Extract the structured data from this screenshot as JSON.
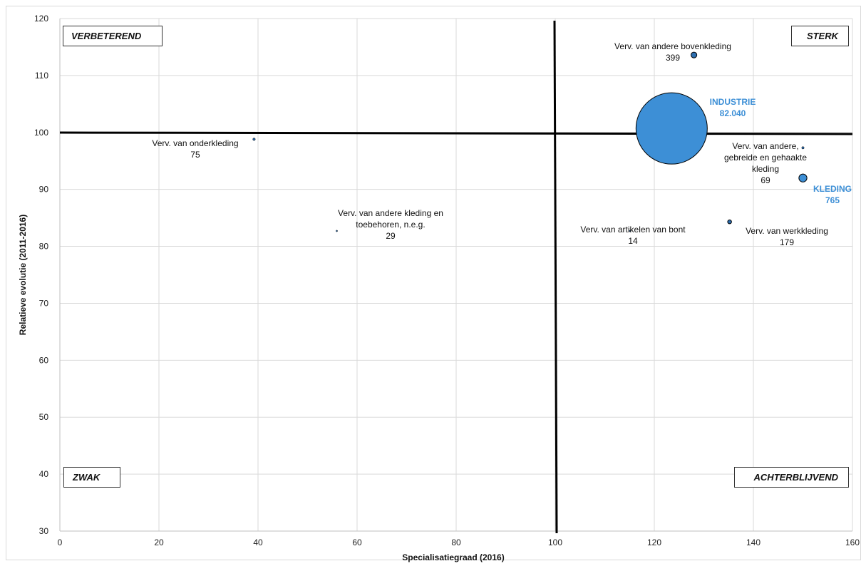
{
  "chart_data": {
    "type": "scatter",
    "subtype": "bubble",
    "xlabel": "Specialisatiegraad  (2016)",
    "ylabel": "Relatieve evolutie (2011-2016)",
    "xlim": [
      0,
      160
    ],
    "ylim": [
      30,
      120
    ],
    "x_ticks": [
      0,
      20,
      40,
      60,
      80,
      100,
      120,
      140,
      160
    ],
    "y_ticks": [
      30,
      40,
      50,
      60,
      70,
      80,
      90,
      100,
      110,
      120
    ],
    "grid": true,
    "reference_lines": {
      "x": 100,
      "y": 100
    },
    "quadrants": {
      "top_left": "VERBETEREND",
      "top_right": "STERK",
      "bottom_left": "ZWAK",
      "bottom_right": "ACHTERBLIJVEND"
    },
    "points": [
      {
        "label": "INDUSTRIE",
        "value": "82.040",
        "size": 82040,
        "x": 123.5,
        "y": 100.7,
        "highlight": true,
        "color": "#3d8fd6"
      },
      {
        "label": "KLEDING",
        "value": "765",
        "size": 765,
        "x": 150,
        "y": 92,
        "highlight": true,
        "color": "#3d8fd6"
      },
      {
        "label": "Verv. van andere bovenkleding",
        "value": "399",
        "size": 399,
        "x": 128,
        "y": 113.6,
        "highlight": false,
        "color": "#2d6fb0"
      },
      {
        "label": "Verv. van werkkleding",
        "value": "179",
        "size": 179,
        "x": 135.2,
        "y": 84.3,
        "highlight": false,
        "color": "#2d6fb0"
      },
      {
        "label": "Verv. van onderkleding",
        "value": "75",
        "size": 75,
        "x": 39.2,
        "y": 98.8,
        "highlight": false,
        "color": "#2d6fb0"
      },
      {
        "label": "Verv. van andere, gebreide en gehaakte kleding",
        "label_lines": [
          "Verv. van andere,",
          "gebreide en gehaakte",
          "kleding"
        ],
        "value": "69",
        "size": 69,
        "x": 150,
        "y": 97.3,
        "highlight": false,
        "color": "#2d6fb0"
      },
      {
        "label": "Verv. van andere kleding en toebehoren, n.e.g.",
        "label_lines": [
          "Verv. van andere kleding en",
          "toebehoren, n.e.g."
        ],
        "value": "29",
        "size": 29,
        "x": 55.9,
        "y": 82.7,
        "highlight": false,
        "color": "#2d6fb0"
      },
      {
        "label": "Verv. van artikelen van bont",
        "value": "14",
        "size": 14,
        "x": 115.1,
        "y": 82.7,
        "highlight": false,
        "color": "#2d6fb0"
      }
    ]
  }
}
